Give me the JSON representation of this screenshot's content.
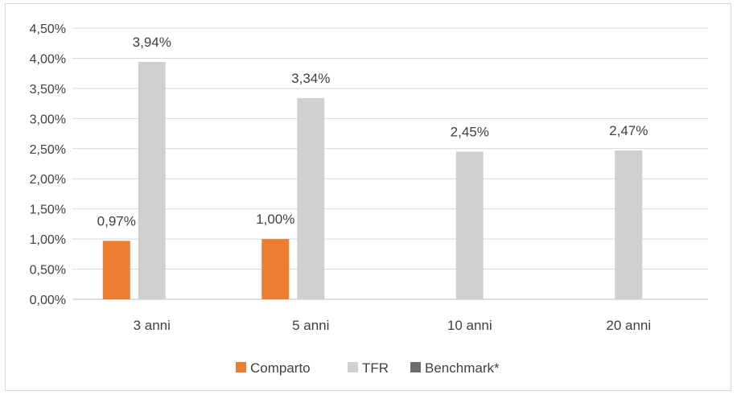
{
  "chart_data": {
    "type": "bar",
    "categories": [
      "3 anni",
      "5 anni",
      "10 anni",
      "20 anni"
    ],
    "series": [
      {
        "name": "Comparto",
        "color": "#ed7d31",
        "values": [
          0.97,
          1.0,
          null,
          null
        ],
        "labels": [
          "0,97%",
          "1,00%",
          null,
          null
        ]
      },
      {
        "name": "TFR",
        "color": "#d0d0d0",
        "values": [
          3.94,
          3.34,
          2.45,
          2.47
        ],
        "labels": [
          "3,94%",
          "3,34%",
          "2,45%",
          "2,47%"
        ]
      },
      {
        "name": "Benchmark*",
        "color": "#6e6e6e",
        "values": [
          null,
          null,
          null,
          null
        ],
        "labels": [
          null,
          null,
          null,
          null
        ]
      }
    ],
    "ylim": [
      0,
      4.5
    ],
    "yticks": [
      0,
      0.5,
      1.0,
      1.5,
      2.0,
      2.5,
      3.0,
      3.5,
      4.0,
      4.5
    ],
    "ytick_labels": [
      "0,00%",
      "0,50%",
      "1,00%",
      "1,50%",
      "2,00%",
      "2,50%",
      "3,00%",
      "3,50%",
      "4,00%",
      "4,50%"
    ],
    "grid": true,
    "legend": "bottom"
  }
}
